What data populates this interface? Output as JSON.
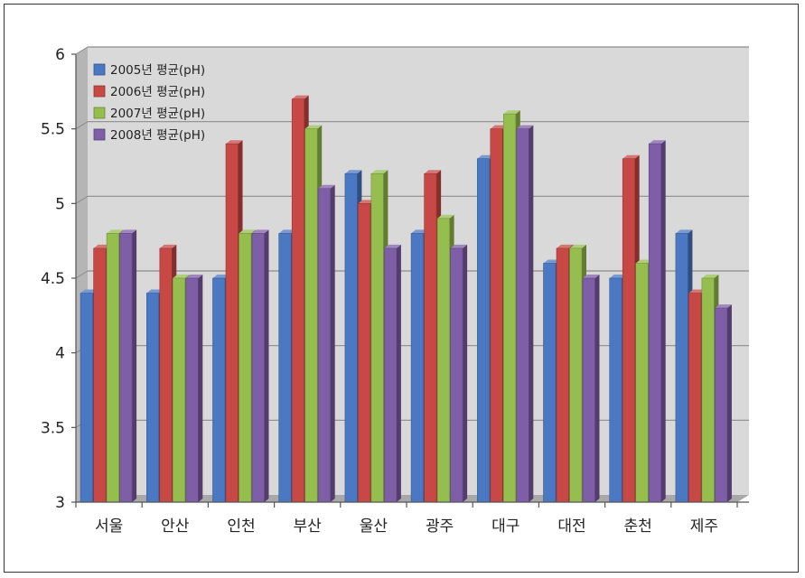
{
  "chart_data": {
    "type": "bar",
    "categories": [
      "서울",
      "안산",
      "인천",
      "부산",
      "울산",
      "광주",
      "대구",
      "대전",
      "춘천",
      "제주"
    ],
    "series": [
      {
        "name": "2005년 평균(pH)",
        "values": [
          4.4,
          4.4,
          4.5,
          4.8,
          5.2,
          4.8,
          5.3,
          4.6,
          4.5,
          4.8
        ]
      },
      {
        "name": "2006년 평균(pH)",
        "values": [
          4.7,
          4.7,
          5.4,
          5.7,
          5.0,
          5.2,
          5.5,
          4.7,
          5.3,
          4.4
        ]
      },
      {
        "name": "2007년 평균(pH)",
        "values": [
          4.8,
          4.5,
          4.8,
          5.5,
          5.2,
          4.9,
          5.6,
          4.7,
          4.6,
          4.5
        ]
      },
      {
        "name": "2008년 평균(pH)",
        "values": [
          4.8,
          4.5,
          4.8,
          5.1,
          4.7,
          4.7,
          5.5,
          4.5,
          5.4,
          4.3
        ]
      }
    ],
    "yticks": [
      "3",
      "3.5",
      "4",
      "4.5",
      "5",
      "5.5",
      "6"
    ],
    "ylim": [
      3,
      6
    ],
    "grid": true,
    "legend_position": "top-left",
    "colors": [
      "#4a78c2",
      "#c84845",
      "#96be4e",
      "#7f5ea8"
    ]
  }
}
